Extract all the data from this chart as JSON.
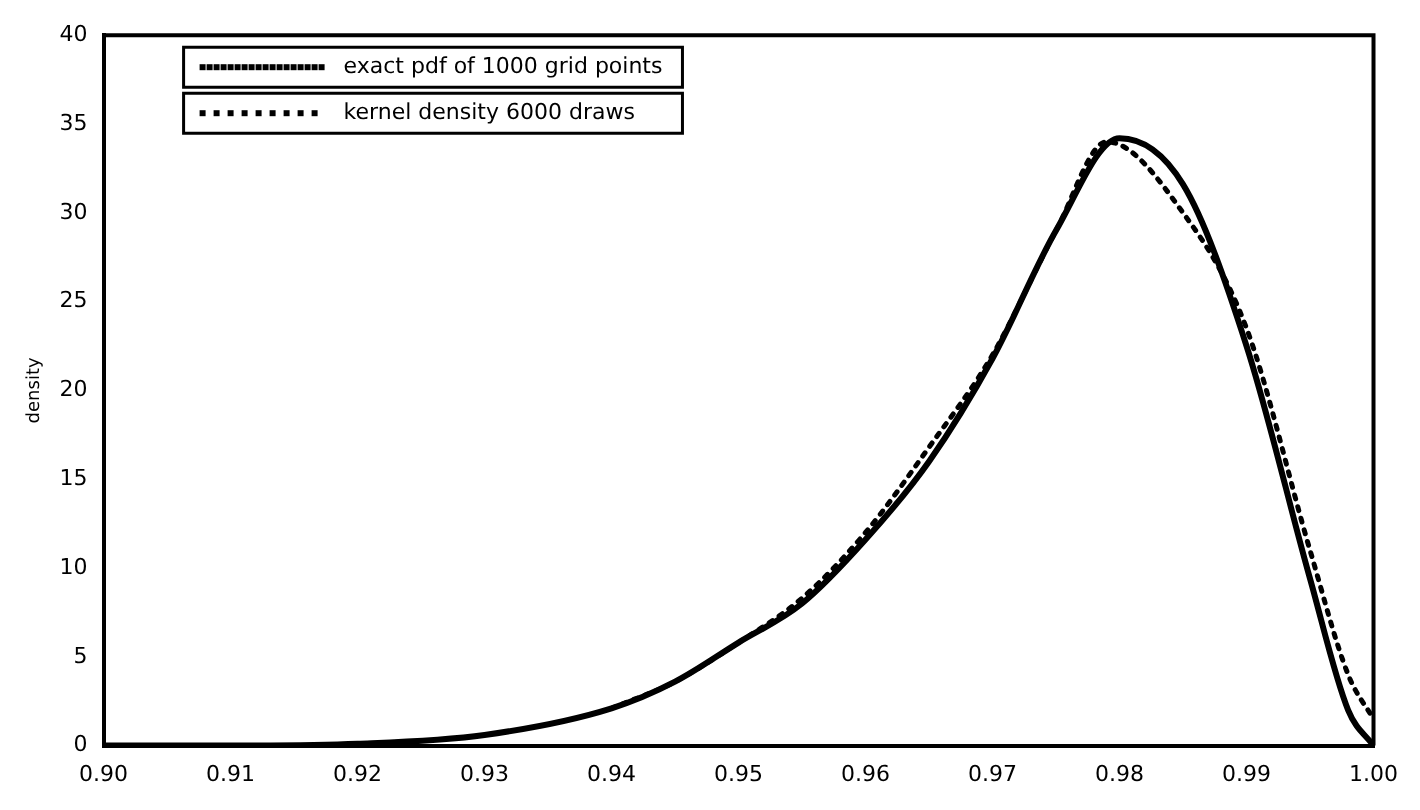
{
  "chart_data": {
    "type": "line",
    "ylabel": "density",
    "xlim": [
      0.9,
      1.0
    ],
    "ylim": [
      0,
      40
    ],
    "xticks": [
      {
        "value": 0.9,
        "label": "0.90"
      },
      0.91,
      0.92,
      0.93,
      0.94,
      0.95,
      0.96,
      0.97,
      0.98,
      0.99,
      {
        "value": 1.0,
        "label": "1.00"
      }
    ],
    "yticks": [
      0,
      5,
      10,
      15,
      20,
      25,
      30,
      35,
      40
    ],
    "grid": false,
    "legend": "top left",
    "series": [
      {
        "name": "exact pdf of 1000 grid points",
        "color": "#000000",
        "line_style": "solid",
        "x": [
          0.9,
          0.91,
          0.92,
          0.93,
          0.94,
          0.945,
          0.95,
          0.955,
          0.96,
          0.965,
          0.97,
          0.975,
          0.98,
          0.985,
          0.99,
          0.995,
          0.998,
          1.0
        ],
        "values": [
          0,
          0,
          0.1,
          0.6,
          2.1,
          3.6,
          5.8,
          8,
          11.6,
          16,
          21.8,
          29,
          34.2,
          31.6,
          22.5,
          9.4,
          2,
          0
        ]
      },
      {
        "name": "kernel density 6000 draws",
        "color": "#000000",
        "line_style": "dotted",
        "x": [
          0.94,
          0.945,
          0.95,
          0.955,
          0.96,
          0.965,
          0.97,
          0.975,
          0.979,
          0.985,
          0.99,
          0.995,
          0.998,
          1.0
        ],
        "values": [
          2.1,
          3.6,
          5.8,
          8.3,
          12,
          16.8,
          22,
          29,
          34,
          30,
          23.5,
          11,
          4,
          1.5
        ]
      }
    ]
  }
}
